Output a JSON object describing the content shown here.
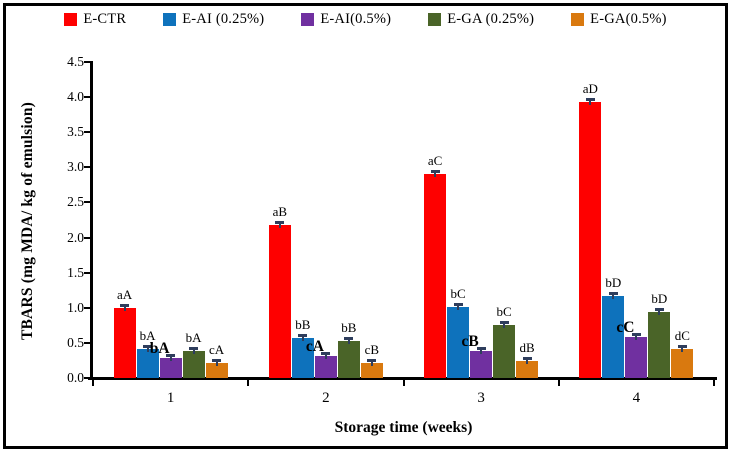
{
  "chart_data": {
    "type": "bar",
    "title": "",
    "xlabel": "Storage time (weeks)",
    "ylabel": "TBARS (mg MDA/ kg of emulsion)",
    "categories": [
      "1",
      "2",
      "3",
      "4"
    ],
    "ylim": [
      0,
      4.5
    ],
    "ytick_step": 0.5,
    "ytick_labels": [
      "0.0",
      "0.5",
      "1.0",
      "1.5",
      "2.0",
      "2.5",
      "3.0",
      "3.5",
      "4.0",
      "4.5"
    ],
    "grid": false,
    "legend_position": "top",
    "error_bar_value": 0.04,
    "error_bar_color": "#2E3D5C",
    "series": [
      {
        "name": "E-CTR",
        "color": "#FE0000",
        "values": [
          1.0,
          2.18,
          2.9,
          3.93
        ],
        "labels": [
          "aA",
          "aB",
          "aC",
          "aD"
        ],
        "labels_bold": false
      },
      {
        "name": "E-AI (0.25%)",
        "color": "#0E72BC",
        "values": [
          0.41,
          0.57,
          1.01,
          1.17
        ],
        "labels": [
          "bA",
          "bB",
          "bC",
          "bD"
        ],
        "labels_bold": false
      },
      {
        "name": "E-AI(0.5%)",
        "color": "#7030A0",
        "values": [
          0.28,
          0.31,
          0.38,
          0.59
        ],
        "labels": [
          "bA",
          "cA",
          "cB",
          "cC"
        ],
        "labels_bold": true
      },
      {
        "name": "E-GA (0.25%)",
        "color": "#4A6428",
        "values": [
          0.38,
          0.52,
          0.76,
          0.94
        ],
        "labels": [
          "bA",
          "bB",
          "bC",
          "bD"
        ],
        "labels_bold": false
      },
      {
        "name": "E-GA(0.5%)",
        "color": "#D9790F",
        "values": [
          0.21,
          0.22,
          0.24,
          0.41
        ],
        "labels": [
          "cA",
          "cB",
          "dB",
          "dC"
        ],
        "labels_bold": false
      }
    ]
  }
}
